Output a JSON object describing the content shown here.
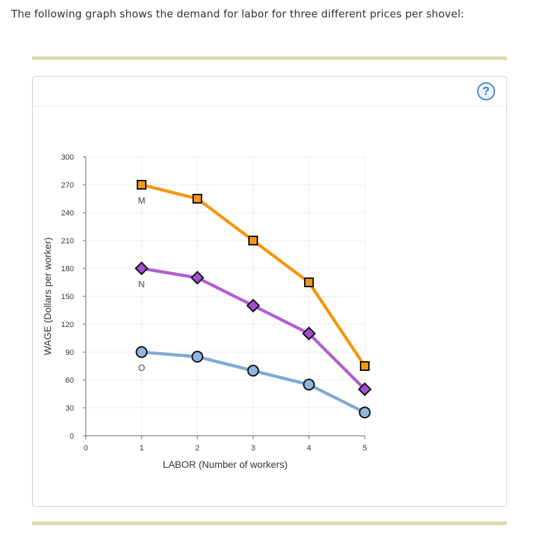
{
  "prompt": "The following graph shows the demand for labor for three different prices per shovel:",
  "help_icon": "question-mark-icon",
  "help_symbol": "?",
  "chart_data": {
    "type": "line",
    "title": "",
    "xlabel": "LABOR (Number of workers)",
    "ylabel": "WAGE (Dollars per worker)",
    "xlim": [
      0,
      5
    ],
    "ylim": [
      0,
      300
    ],
    "xticks": [
      0,
      1,
      2,
      3,
      4,
      5
    ],
    "yticks": [
      0,
      30,
      60,
      90,
      120,
      150,
      180,
      210,
      240,
      270,
      300
    ],
    "grid": true,
    "x": [
      1,
      2,
      3,
      4,
      5
    ],
    "series": [
      {
        "name": "M",
        "label": "M",
        "marker": "square",
        "color": "#f5960f",
        "marker_fill": "#f5960f",
        "values": [
          270,
          255,
          210,
          165,
          75
        ]
      },
      {
        "name": "N",
        "label": "N",
        "marker": "diamond",
        "color": "#b05fcf",
        "marker_fill": "#a050d0",
        "values": [
          180,
          170,
          140,
          110,
          50
        ]
      },
      {
        "name": "O",
        "label": "O",
        "marker": "circle",
        "color": "#82a9d3",
        "marker_fill": "#90b6de",
        "values": [
          90,
          85,
          70,
          55,
          25
        ]
      }
    ]
  }
}
